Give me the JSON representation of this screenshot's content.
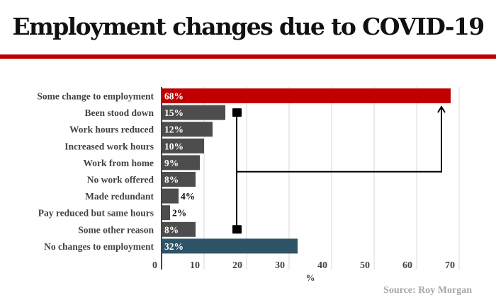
{
  "header": {
    "title": "Employment changes due to COVID-19"
  },
  "source": "Source: Roy Morgan",
  "colors": {
    "highlight": "#c00000",
    "bar": "#4d4d4d",
    "none": "#2e5468",
    "rule": "#c00000",
    "grid": "#d9d9d9"
  },
  "chart_data": {
    "type": "bar",
    "orientation": "horizontal",
    "title": "Employment changes due to COVID-19",
    "xlabel": "%",
    "ylabel": "",
    "xlim": [
      0,
      75
    ],
    "xticks": [
      0,
      10,
      20,
      30,
      40,
      50,
      60,
      70
    ],
    "grid": true,
    "categories": [
      "Some change to employment",
      "Been stood down",
      "Work hours reduced",
      "Increased work hours",
      "Work from home",
      "No work offered",
      "Made redundant",
      "Pay reduced but same hours",
      "Some other reason",
      "No changes to employment"
    ],
    "values": [
      68,
      15,
      12,
      10,
      9,
      8,
      4,
      2,
      8,
      32
    ],
    "data_labels": [
      "68%",
      "15%",
      "12%",
      "10%",
      "9%",
      "8%",
      "4%",
      "2%",
      "8%",
      "32%"
    ],
    "bar_colors": [
      "highlight",
      "bar",
      "bar",
      "bar",
      "bar",
      "bar",
      "bar",
      "bar",
      "bar",
      "none"
    ],
    "annotation": {
      "type": "bracket-arrow",
      "from_categories": [
        "Been stood down",
        "Some other reason"
      ],
      "to_category": "Some change to employment",
      "description": "sum of sub-categories"
    }
  }
}
